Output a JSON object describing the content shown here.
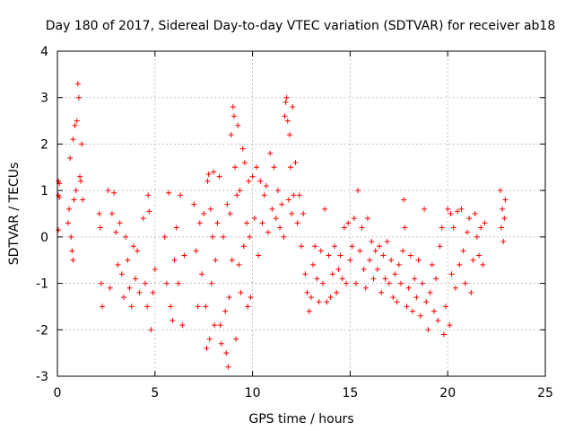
{
  "chart_data": {
    "type": "scatter",
    "title": "Day 180 of 2017, Sidereal Day-to-day VTEC variation (SDTVAR) for receiver ab18",
    "xlabel": "GPS time / hours",
    "ylabel": "SDTVAR / TECUs",
    "xlim": [
      0,
      25
    ],
    "ylim": [
      -3,
      4
    ],
    "xticks": [
      0,
      5,
      10,
      15,
      20,
      25
    ],
    "yticks": [
      -3,
      -2,
      -1,
      0,
      1,
      2,
      3,
      4
    ],
    "grid": true,
    "marker": "+",
    "color": "#ff0000",
    "series": [
      {
        "name": "SDTVAR",
        "points": [
          [
            0.05,
            1.2
          ],
          [
            0.05,
            0.9
          ],
          [
            0.05,
            0.15
          ],
          [
            0.1,
            1.15
          ],
          [
            0.1,
            0.85
          ],
          [
            0.55,
            0.3
          ],
          [
            0.6,
            0.6
          ],
          [
            0.65,
            1.7
          ],
          [
            0.7,
            0.0
          ],
          [
            0.75,
            -0.3
          ],
          [
            0.8,
            2.1
          ],
          [
            0.8,
            -0.5
          ],
          [
            0.85,
            0.8
          ],
          [
            0.9,
            2.4
          ],
          [
            0.95,
            1.0
          ],
          [
            1.0,
            2.5
          ],
          [
            1.05,
            3.3
          ],
          [
            1.1,
            3.0
          ],
          [
            1.15,
            1.3
          ],
          [
            1.2,
            1.2
          ],
          [
            1.25,
            2.0
          ],
          [
            1.3,
            0.8
          ],
          [
            2.15,
            0.5
          ],
          [
            2.2,
            0.2
          ],
          [
            2.25,
            -1.0
          ],
          [
            2.3,
            -1.5
          ],
          [
            2.6,
            1.0
          ],
          [
            2.7,
            -1.1
          ],
          [
            2.8,
            0.5
          ],
          [
            2.9,
            0.95
          ],
          [
            3.0,
            0.1
          ],
          [
            3.1,
            -0.6
          ],
          [
            3.2,
            0.3
          ],
          [
            3.3,
            -0.8
          ],
          [
            3.4,
            -1.3
          ],
          [
            3.5,
            0.0
          ],
          [
            3.6,
            -0.5
          ],
          [
            3.7,
            -1.1
          ],
          [
            3.8,
            -1.5
          ],
          [
            3.9,
            -0.2
          ],
          [
            4.0,
            -0.9
          ],
          [
            4.1,
            -0.3
          ],
          [
            4.2,
            -1.2
          ],
          [
            4.4,
            0.4
          ],
          [
            4.5,
            -1.0
          ],
          [
            4.6,
            -1.5
          ],
          [
            4.65,
            0.9
          ],
          [
            4.7,
            0.55
          ],
          [
            4.8,
            -2.0
          ],
          [
            4.9,
            -1.2
          ],
          [
            5.0,
            -0.7
          ],
          [
            5.5,
            0.0
          ],
          [
            5.6,
            -1.0
          ],
          [
            5.7,
            0.95
          ],
          [
            5.8,
            -1.5
          ],
          [
            5.9,
            -1.8
          ],
          [
            6.0,
            -0.5
          ],
          [
            6.1,
            0.2
          ],
          [
            6.2,
            -1.0
          ],
          [
            6.3,
            0.9
          ],
          [
            6.4,
            -1.9
          ],
          [
            6.5,
            -0.4
          ],
          [
            7.0,
            0.7
          ],
          [
            7.1,
            -0.3
          ],
          [
            7.2,
            -1.5
          ],
          [
            7.3,
            0.3
          ],
          [
            7.4,
            -0.8
          ],
          [
            7.5,
            0.5
          ],
          [
            7.6,
            -1.5
          ],
          [
            7.65,
            -2.4
          ],
          [
            7.7,
            1.2
          ],
          [
            7.75,
            1.35
          ],
          [
            7.8,
            -2.2
          ],
          [
            7.85,
            0.6
          ],
          [
            7.9,
            -1.0
          ],
          [
            7.95,
            0.0
          ],
          [
            8.0,
            1.4
          ],
          [
            8.05,
            -1.9
          ],
          [
            8.1,
            -0.5
          ],
          [
            8.2,
            0.3
          ],
          [
            8.3,
            1.3
          ],
          [
            8.35,
            -1.9
          ],
          [
            8.4,
            -2.3
          ],
          [
            8.5,
            0.0
          ],
          [
            8.6,
            -1.6
          ],
          [
            8.65,
            -2.5
          ],
          [
            8.7,
            0.7
          ],
          [
            8.75,
            -2.8
          ],
          [
            8.8,
            -1.3
          ],
          [
            8.85,
            0.5
          ],
          [
            8.9,
            2.2
          ],
          [
            8.95,
            -0.5
          ],
          [
            9.0,
            2.8
          ],
          [
            9.05,
            2.6
          ],
          [
            9.1,
            1.5
          ],
          [
            9.15,
            -2.2
          ],
          [
            9.2,
            0.9
          ],
          [
            9.25,
            2.4
          ],
          [
            9.3,
            -0.6
          ],
          [
            9.35,
            1.0
          ],
          [
            9.4,
            -1.2
          ],
          [
            9.5,
            1.9
          ],
          [
            9.55,
            -0.2
          ],
          [
            9.6,
            1.6
          ],
          [
            9.7,
            0.3
          ],
          [
            9.75,
            -1.5
          ],
          [
            9.8,
            1.2
          ],
          [
            9.85,
            0.0
          ],
          [
            9.9,
            -1.3
          ],
          [
            10.0,
            1.3
          ],
          [
            10.1,
            0.4
          ],
          [
            10.2,
            1.5
          ],
          [
            10.3,
            -0.4
          ],
          [
            10.4,
            1.2
          ],
          [
            10.5,
            0.3
          ],
          [
            10.6,
            0.9
          ],
          [
            10.7,
            1.1
          ],
          [
            10.8,
            0.1
          ],
          [
            10.9,
            1.8
          ],
          [
            11.0,
            0.6
          ],
          [
            11.1,
            1.5
          ],
          [
            11.2,
            0.4
          ],
          [
            11.3,
            1.0
          ],
          [
            11.4,
            0.2
          ],
          [
            11.5,
            0.7
          ],
          [
            11.6,
            0.0
          ],
          [
            11.65,
            2.6
          ],
          [
            11.7,
            2.9
          ],
          [
            11.75,
            3.0
          ],
          [
            11.8,
            2.5
          ],
          [
            11.85,
            0.8
          ],
          [
            11.9,
            2.2
          ],
          [
            11.95,
            1.5
          ],
          [
            12.0,
            0.5
          ],
          [
            12.05,
            2.8
          ],
          [
            12.1,
            0.9
          ],
          [
            12.2,
            1.6
          ],
          [
            12.3,
            0.3
          ],
          [
            12.4,
            0.9
          ],
          [
            12.5,
            -0.2
          ],
          [
            12.6,
            0.5
          ],
          [
            12.7,
            -0.8
          ],
          [
            12.8,
            -1.2
          ],
          [
            12.9,
            -1.6
          ],
          [
            13.0,
            -1.3
          ],
          [
            13.1,
            -0.6
          ],
          [
            13.2,
            -0.2
          ],
          [
            13.3,
            -0.9
          ],
          [
            13.4,
            -1.4
          ],
          [
            13.5,
            -0.3
          ],
          [
            13.6,
            -1.0
          ],
          [
            13.7,
            0.6
          ],
          [
            13.8,
            -1.4
          ],
          [
            13.9,
            -0.4
          ],
          [
            14.0,
            -1.3
          ],
          [
            14.1,
            -0.8
          ],
          [
            14.2,
            -0.2
          ],
          [
            14.3,
            -1.2
          ],
          [
            14.4,
            -0.7
          ],
          [
            14.5,
            -0.4
          ],
          [
            14.6,
            -0.9
          ],
          [
            14.7,
            0.2
          ],
          [
            14.8,
            -1.0
          ],
          [
            14.9,
            0.3
          ],
          [
            15.0,
            -0.5
          ],
          [
            15.1,
            -0.2
          ],
          [
            15.2,
            0.4
          ],
          [
            15.3,
            -1.0
          ],
          [
            15.4,
            1.0
          ],
          [
            15.5,
            -0.3
          ],
          [
            15.6,
            0.2
          ],
          [
            15.7,
            -0.7
          ],
          [
            15.8,
            -1.1
          ],
          [
            15.9,
            0.4
          ],
          [
            16.0,
            -0.5
          ],
          [
            16.1,
            -0.1
          ],
          [
            16.2,
            -0.9
          ],
          [
            16.3,
            -0.3
          ],
          [
            16.4,
            -0.7
          ],
          [
            16.5,
            -0.2
          ],
          [
            16.6,
            -1.2
          ],
          [
            16.7,
            -0.4
          ],
          [
            16.8,
            -0.9
          ],
          [
            16.9,
            -0.1
          ],
          [
            17.0,
            -1.0
          ],
          [
            17.1,
            -0.5
          ],
          [
            17.2,
            -1.3
          ],
          [
            17.3,
            -0.8
          ],
          [
            17.4,
            -1.4
          ],
          [
            17.5,
            -0.6
          ],
          [
            17.6,
            -1.0
          ],
          [
            17.7,
            -0.3
          ],
          [
            17.75,
            0.8
          ],
          [
            17.8,
            0.2
          ],
          [
            17.9,
            -1.5
          ],
          [
            18.0,
            -1.1
          ],
          [
            18.1,
            -0.4
          ],
          [
            18.2,
            -1.6
          ],
          [
            18.3,
            -0.9
          ],
          [
            18.4,
            -1.3
          ],
          [
            18.5,
            -0.5
          ],
          [
            18.6,
            -1.7
          ],
          [
            18.7,
            -1.0
          ],
          [
            18.8,
            0.6
          ],
          [
            18.9,
            -1.4
          ],
          [
            19.0,
            -2.0
          ],
          [
            19.1,
            -1.2
          ],
          [
            19.2,
            -0.6
          ],
          [
            19.3,
            -1.6
          ],
          [
            19.4,
            -0.9
          ],
          [
            19.5,
            -1.8
          ],
          [
            19.6,
            -0.2
          ],
          [
            19.7,
            0.2
          ],
          [
            19.8,
            -2.1
          ],
          [
            19.9,
            -1.5
          ],
          [
            20.0,
            0.6
          ],
          [
            20.1,
            -1.9
          ],
          [
            20.15,
            0.5
          ],
          [
            20.2,
            -0.8
          ],
          [
            20.3,
            0.2
          ],
          [
            20.4,
            -1.1
          ],
          [
            20.5,
            0.55
          ],
          [
            20.6,
            -0.6
          ],
          [
            20.7,
            0.6
          ],
          [
            20.8,
            -0.3
          ],
          [
            20.9,
            -1.0
          ],
          [
            21.0,
            0.1
          ],
          [
            21.1,
            0.4
          ],
          [
            21.2,
            -1.2
          ],
          [
            21.3,
            -0.5
          ],
          [
            21.4,
            0.5
          ],
          [
            21.5,
            0.0
          ],
          [
            21.6,
            -0.4
          ],
          [
            21.7,
            0.2
          ],
          [
            21.8,
            -0.6
          ],
          [
            21.9,
            0.3
          ],
          [
            22.7,
            1.0
          ],
          [
            22.75,
            0.2
          ],
          [
            22.8,
            0.6
          ],
          [
            22.85,
            -0.1
          ],
          [
            22.9,
            0.4
          ],
          [
            22.95,
            0.8
          ]
        ]
      }
    ]
  }
}
